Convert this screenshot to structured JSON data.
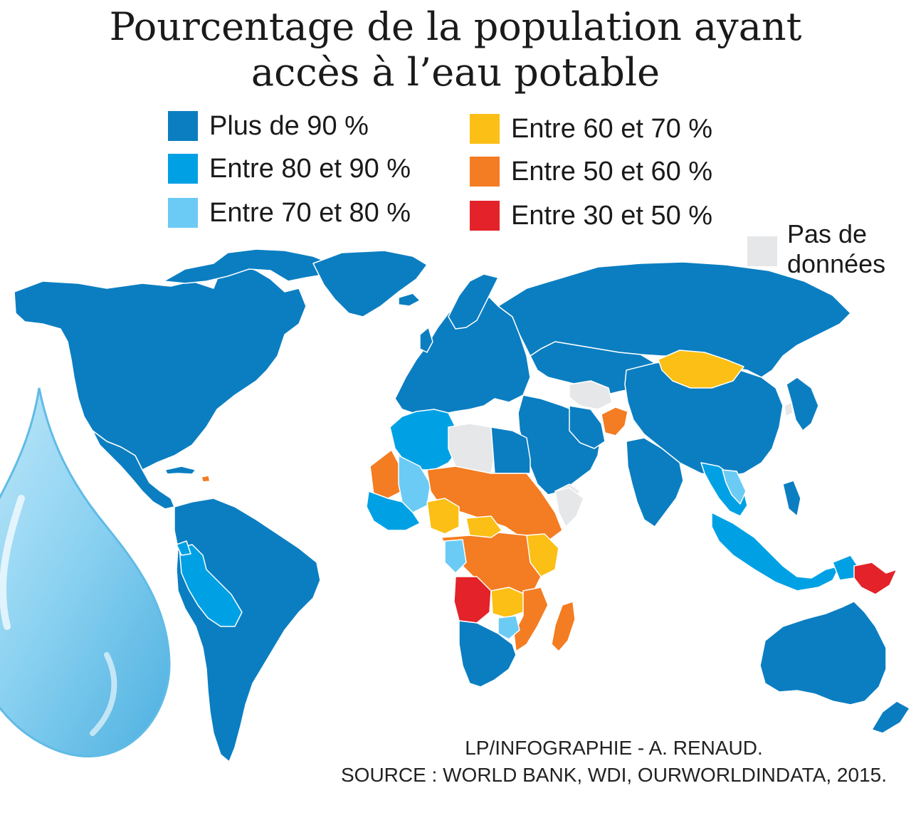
{
  "title": {
    "line1": "Pourcentage de la population ayant",
    "line2": "accès à l’eau potable"
  },
  "legend": [
    {
      "label": "Plus de 90 %",
      "color": "#0b7ec1"
    },
    {
      "label": "Entre 80 et 90 %",
      "color": "#00a1e4"
    },
    {
      "label": "Entre 70 et 80 %",
      "color": "#6bcbf4"
    },
    {
      "label": "Entre 60 et 70 %",
      "color": "#fbbf16"
    },
    {
      "label": "Entre 50 et 60 %",
      "color": "#f47c22"
    },
    {
      "label": "Entre 30 et 50 %",
      "color": "#e3222a"
    }
  ],
  "no_data": {
    "line1": "Pas de",
    "line2": "données",
    "color": "#e6e7e8"
  },
  "credits": {
    "line1": "LP/INFOGRAPHIE - A. RENAUD.",
    "line2": "SOURCE : WORLD BANK, WDI, OURWORLDINDATA, 2015."
  },
  "map": {
    "ocean_color": "#ffffff",
    "border_color": "#ffffff",
    "drop_color": "#7fcdf0"
  }
}
